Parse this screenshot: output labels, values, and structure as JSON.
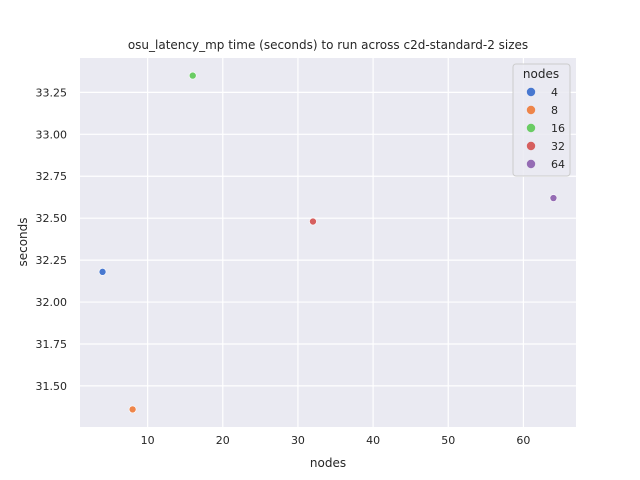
{
  "chart_data": {
    "type": "scatter",
    "title": "osu_latency_mp time (seconds) to run across c2d-standard-2 sizes",
    "xlabel": "nodes",
    "ylabel": "seconds",
    "xlim": [
      1.0,
      67.0
    ],
    "ylim": [
      31.255,
      33.455
    ],
    "xticks": [
      10,
      20,
      30,
      40,
      50,
      60
    ],
    "yticks": [
      31.5,
      31.75,
      32.0,
      32.25,
      32.5,
      32.75,
      33.0,
      33.25
    ],
    "xtick_labels": [
      "10",
      "20",
      "30",
      "40",
      "50",
      "60"
    ],
    "ytick_labels": [
      "31.50",
      "31.75",
      "32.00",
      "32.25",
      "32.50",
      "32.75",
      "33.00",
      "33.25"
    ],
    "grid": true,
    "legend_title": "nodes",
    "legend_position": "top-right",
    "series": [
      {
        "name": "4",
        "color": "#4878d0",
        "points": [
          {
            "x": 4,
            "y": 32.18
          }
        ]
      },
      {
        "name": "8",
        "color": "#ee854a",
        "points": [
          {
            "x": 8,
            "y": 31.36
          }
        ]
      },
      {
        "name": "16",
        "color": "#6acc64",
        "points": [
          {
            "x": 16,
            "y": 33.35
          }
        ]
      },
      {
        "name": "32",
        "color": "#d65f5f",
        "points": [
          {
            "x": 32,
            "y": 32.48
          }
        ]
      },
      {
        "name": "64",
        "color": "#956cb4",
        "points": [
          {
            "x": 64,
            "y": 32.62
          }
        ]
      }
    ],
    "plot_background": "#eaeaf2",
    "grid_color": "#ffffff"
  }
}
